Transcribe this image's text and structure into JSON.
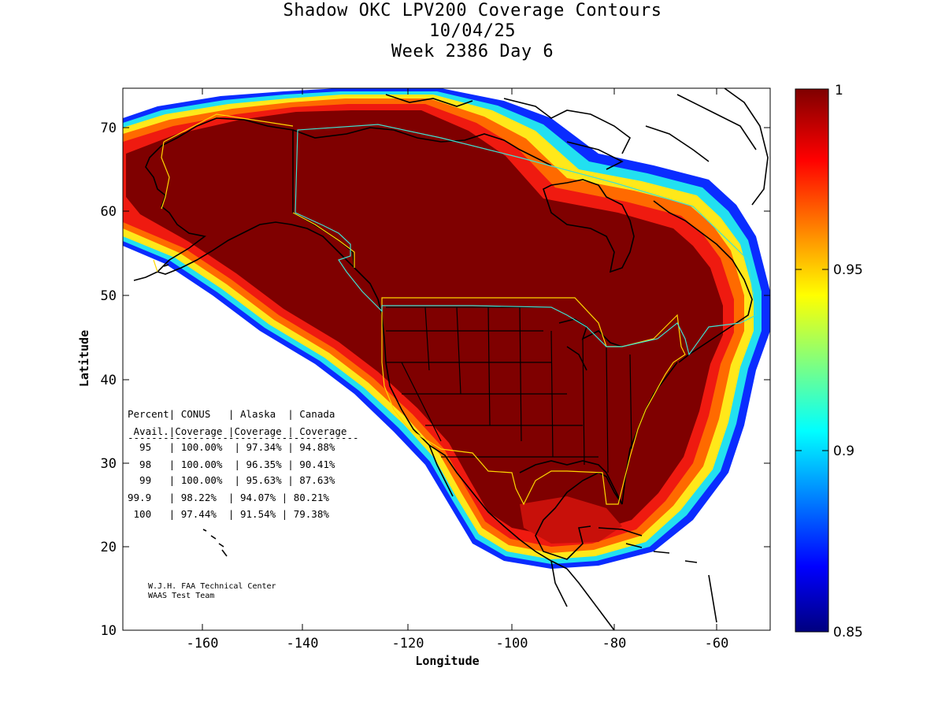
{
  "title": {
    "line1": "Shadow OKC LPV200 Coverage Contours",
    "line2": "10/04/25",
    "line3": "Week 2386 Day 6"
  },
  "axes": {
    "xlabel": "Longitude",
    "ylabel": "Latitude",
    "x_ticks": [
      "-160",
      "-140",
      "-120",
      "-100",
      "-80",
      "-60"
    ],
    "y_ticks": [
      "70",
      "60",
      "50",
      "40",
      "30",
      "20",
      "10"
    ],
    "x_range": [
      -175,
      -50
    ],
    "y_range": [
      10,
      75
    ]
  },
  "colorbar": {
    "ticks": [
      "1",
      "0.95",
      "0.9",
      "0.85"
    ],
    "range": [
      0.85,
      1.0
    ],
    "colormap": "jet",
    "color_low": "#00007f",
    "color_high": "#7f0000"
  },
  "table": {
    "header1": "Percent| CONUS   | Alaska  | Canada",
    "header2": " Avail.|Coverage |Coverage | Coverage",
    "divider": "---------------------------------------",
    "rows": [
      "  95   | 100.00%  | 97.34% | 94.88%",
      "  98   | 100.00%  | 96.35% | 90.41%",
      "  99   | 100.00%  | 95.63% | 87.63%",
      "99.9   | 98.22%  | 94.07% | 80.21%",
      " 100   | 97.44%  | 91.54% | 79.38%"
    ]
  },
  "credit": {
    "line1": "W.J.H. FAA Technical Center",
    "line2": "WAAS Test Team"
  },
  "map_colors": {
    "coastline": "#000000",
    "border_alaska_conus": "#ffd700",
    "border_canada": "#40e0d0"
  }
}
